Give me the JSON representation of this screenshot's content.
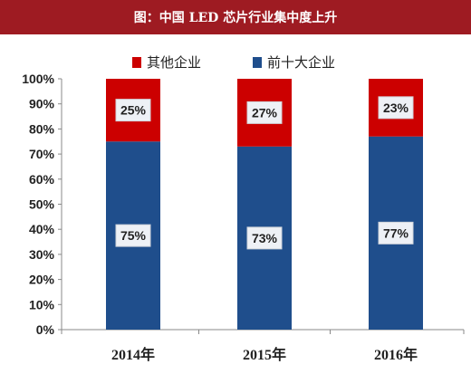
{
  "title": "图：中国 LED 芯片行业集中度上升",
  "colors": {
    "title_bg": "#9e1b22",
    "others": "#cc0000",
    "top10": "#1f4e8c",
    "axis": "#888888"
  },
  "chart_data": {
    "type": "bar",
    "stacked": true,
    "title": "图：中国 LED 芯片行业集中度上升",
    "categories": [
      "2014年",
      "2015年",
      "2016年"
    ],
    "series": [
      {
        "name": "前十大企业",
        "values": [
          75,
          73,
          77
        ],
        "labels": [
          "75%",
          "73%",
          "77%"
        ]
      },
      {
        "name": "其他企业",
        "values": [
          25,
          27,
          23
        ],
        "labels": [
          "25%",
          "27%",
          "23%"
        ]
      }
    ],
    "ylim": [
      0,
      100
    ],
    "yticks": [
      "0%",
      "10%",
      "20%",
      "30%",
      "40%",
      "50%",
      "60%",
      "70%",
      "80%",
      "90%",
      "100%"
    ],
    "legend_position": "top",
    "legend_order": [
      "其他企业",
      "前十大企业"
    ],
    "grid": false
  }
}
